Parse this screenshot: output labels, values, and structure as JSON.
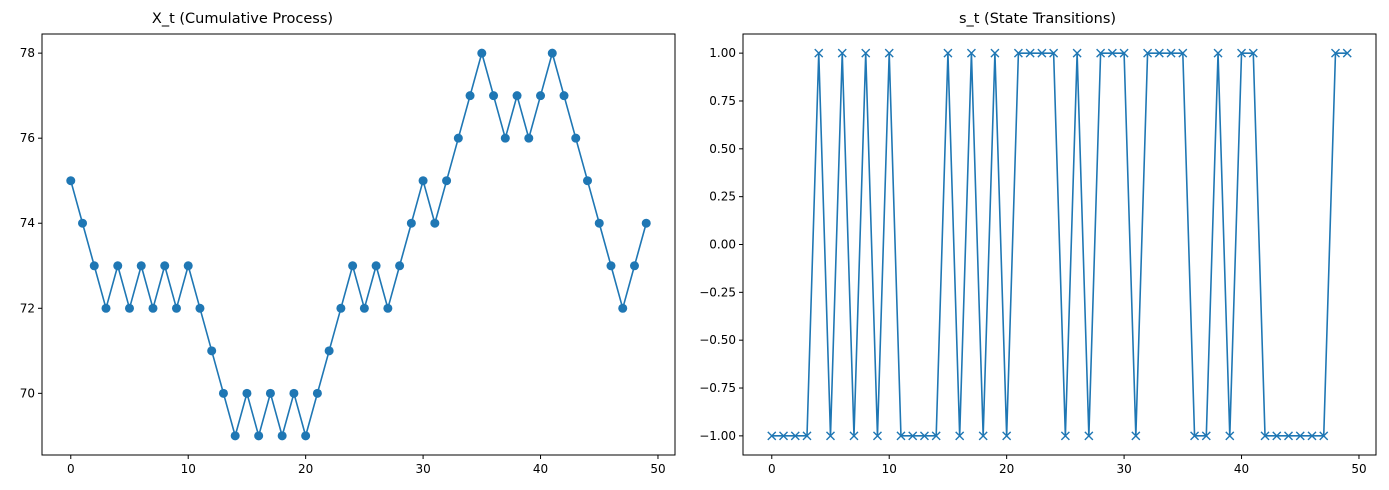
{
  "colors": {
    "series": "#1f77b4"
  },
  "chart_data": [
    {
      "type": "line",
      "marker": "circle",
      "title": "X_t (Cumulative Process)",
      "xlabel": "",
      "ylabel": "",
      "xlim": [
        -2.45,
        51.45
      ],
      "ylim": [
        68.55,
        78.45
      ],
      "xticks": [
        0,
        10,
        20,
        30,
        40,
        50
      ],
      "yticks": [
        70,
        72,
        74,
        76,
        78
      ],
      "ytick_labels": [
        "70",
        "72",
        "74",
        "76",
        "78"
      ],
      "grid": false,
      "x": [
        0,
        1,
        2,
        3,
        4,
        5,
        6,
        7,
        8,
        9,
        10,
        11,
        12,
        13,
        14,
        15,
        16,
        17,
        18,
        19,
        20,
        21,
        22,
        23,
        24,
        25,
        26,
        27,
        28,
        29,
        30,
        31,
        32,
        33,
        34,
        35,
        36,
        37,
        38,
        39,
        40,
        41,
        42,
        43,
        44,
        45,
        46,
        47,
        48,
        49
      ],
      "series": [
        {
          "values": [
            75,
            74,
            73,
            72,
            73,
            72,
            73,
            72,
            73,
            72,
            73,
            72,
            71,
            70,
            69,
            70,
            69,
            70,
            69,
            70,
            69,
            70,
            71,
            72,
            73,
            72,
            73,
            72,
            73,
            74,
            75,
            74,
            75,
            76,
            77,
            78,
            77,
            76,
            77,
            76,
            77,
            78,
            77,
            76,
            75,
            74,
            73,
            72,
            73,
            74
          ]
        }
      ]
    },
    {
      "type": "line",
      "marker": "x",
      "title": "s_t (State Transitions)",
      "xlabel": "",
      "ylabel": "",
      "xlim": [
        -2.45,
        51.45
      ],
      "ylim": [
        -1.1,
        1.1
      ],
      "xticks": [
        0,
        10,
        20,
        30,
        40,
        50
      ],
      "yticks": [
        -1.0,
        -0.75,
        -0.5,
        -0.25,
        0.0,
        0.25,
        0.5,
        0.75,
        1.0
      ],
      "ytick_labels": [
        "−1.00",
        "−0.75",
        "−0.50",
        "−0.25",
        "0.00",
        "0.25",
        "0.50",
        "0.75",
        "1.00"
      ],
      "grid": false,
      "x": [
        0,
        1,
        2,
        3,
        4,
        5,
        6,
        7,
        8,
        9,
        10,
        11,
        12,
        13,
        14,
        15,
        16,
        17,
        18,
        19,
        20,
        21,
        22,
        23,
        24,
        25,
        26,
        27,
        28,
        29,
        30,
        31,
        32,
        33,
        34,
        35,
        36,
        37,
        38,
        39,
        40,
        41,
        42,
        43,
        44,
        45,
        46,
        47,
        48,
        49
      ],
      "series": [
        {
          "values": [
            -1,
            -1,
            -1,
            -1,
            1,
            -1,
            1,
            -1,
            1,
            -1,
            1,
            -1,
            -1,
            -1,
            -1,
            1,
            -1,
            1,
            -1,
            1,
            -1,
            1,
            1,
            1,
            1,
            -1,
            1,
            -1,
            1,
            1,
            1,
            -1,
            1,
            1,
            1,
            1,
            -1,
            -1,
            1,
            -1,
            1,
            1,
            -1,
            -1,
            -1,
            -1,
            -1,
            -1,
            1,
            1
          ]
        }
      ]
    }
  ]
}
